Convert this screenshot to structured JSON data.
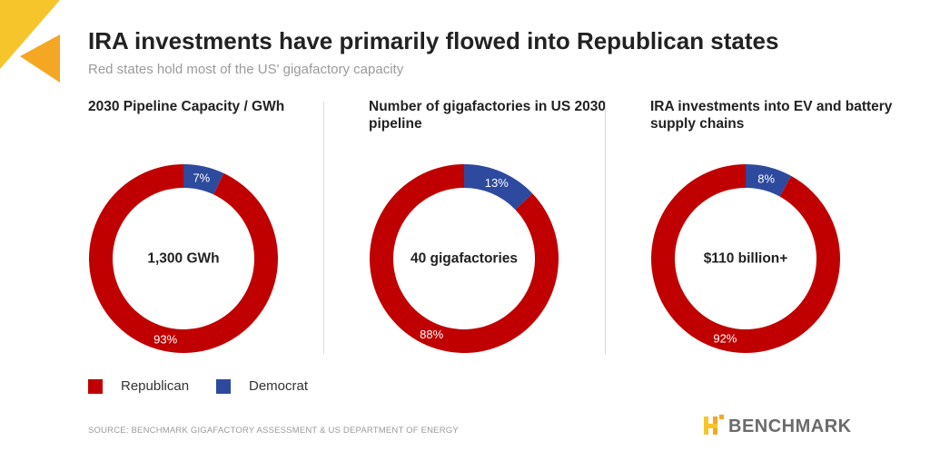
{
  "header": {
    "title": "IRA investments have primarily flowed into Republican states",
    "subtitle": "Red states hold most of the US' gigafactory capacity"
  },
  "colors": {
    "republican": "#c00000",
    "democrat": "#2e4a9e",
    "accent_yellow": "#f6c52b",
    "accent_orange": "#f5a623"
  },
  "chart_data": [
    {
      "type": "pie",
      "title": "2030 Pipeline Capacity / GWh",
      "center_label": "1,300 GWh",
      "categories": [
        "Democrat",
        "Republican"
      ],
      "values": [
        7,
        93
      ],
      "labels": [
        "7%",
        "93%"
      ]
    },
    {
      "type": "pie",
      "title": "Number of gigafactories in US 2030 pipeline",
      "center_label": "40 gigafactories",
      "categories": [
        "Democrat",
        "Republican"
      ],
      "values": [
        13,
        88
      ],
      "labels": [
        "13%",
        "88%"
      ]
    },
    {
      "type": "pie",
      "title": "IRA investments into EV and battery supply chains",
      "center_label": "$110 billion+",
      "categories": [
        "Democrat",
        "Republican"
      ],
      "values": [
        8,
        92
      ],
      "labels": [
        "8%",
        "92%"
      ]
    }
  ],
  "legend": {
    "items": [
      {
        "label": "Republican",
        "color": "#c00000"
      },
      {
        "label": "Democrat",
        "color": "#2e4a9e"
      }
    ]
  },
  "footer": {
    "source": "SOURCE: BENCHMARK GIGAFACTORY ASSESSMENT & US DEPARTMENT OF ENERGY",
    "brand": "BENCHMARK"
  }
}
